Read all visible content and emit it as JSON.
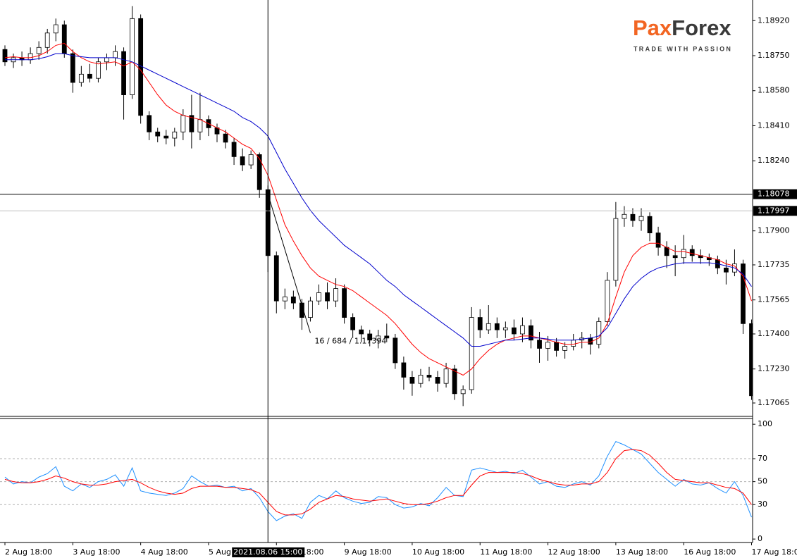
{
  "chart_data": [
    {
      "type": "candlestick",
      "categories": [
        "2 Aug 18:00",
        null,
        null,
        null,
        null,
        null,
        null,
        null,
        "3 Aug 18:00",
        null,
        null,
        null,
        null,
        null,
        null,
        null,
        "4 Aug 18:00",
        null,
        null,
        null,
        null,
        null,
        null,
        null,
        "5 Aug 18:00",
        null,
        null,
        null,
        null,
        null,
        null,
        null,
        "6 Aug 18:00",
        null,
        null,
        null,
        null,
        null,
        null,
        null,
        "9 Aug 18:00",
        null,
        null,
        null,
        null,
        null,
        null,
        null,
        "10 Aug 18:00",
        null,
        null,
        null,
        null,
        null,
        null,
        null,
        "11 Aug 18:00",
        null,
        null,
        null,
        null,
        null,
        null,
        null,
        "12 Aug 18:00",
        null,
        null,
        null,
        null,
        null,
        null,
        null,
        "13 Aug 18:00",
        null,
        null,
        null,
        null,
        null,
        null,
        null,
        "16 Aug 18:00",
        null,
        null,
        null,
        null,
        null,
        null,
        null,
        "17 Aug 18:00"
      ],
      "open": [
        1.1878,
        1.1872,
        1.1874,
        1.1873,
        1.1876,
        1.1879,
        1.1886,
        1.189,
        1.1876,
        1.1862,
        1.1866,
        1.1864,
        1.1872,
        1.1874,
        1.1877,
        1.1856,
        1.1893,
        1.1846,
        1.1838,
        1.1836,
        1.1835,
        1.1838,
        1.1846,
        1.1838,
        1.1844,
        1.184,
        1.1837,
        1.1833,
        1.1826,
        1.1822,
        1.1827,
        1.181,
        1.1778,
        1.1756,
        1.1758,
        1.1755,
        1.1748,
        1.1756,
        1.176,
        1.1756,
        1.1762,
        1.1748,
        1.1742,
        1.174,
        1.1737,
        1.1739,
        1.1738,
        1.1726,
        1.1719,
        1.1716,
        1.172,
        1.1719,
        1.1716,
        1.1723,
        1.1711,
        1.1713,
        1.1748,
        1.1742,
        1.1745,
        1.1742,
        1.1743,
        1.174,
        1.1744,
        1.1737,
        1.1733,
        1.1736,
        1.1732,
        1.1734,
        1.1737,
        1.1738,
        1.1735,
        1.1746,
        1.1766,
        1.1796,
        1.1798,
        1.1795,
        1.1797,
        1.1789,
        1.1782,
        1.1778,
        1.1777,
        1.1781,
        1.1778,
        1.1777,
        1.1776,
        1.1772,
        1.177,
        1.1774,
        1.1745
      ],
      "high": [
        1.188,
        1.1876,
        1.1877,
        1.1879,
        1.1882,
        1.1888,
        1.1893,
        1.1892,
        1.1878,
        1.187,
        1.1871,
        1.1874,
        1.1876,
        1.188,
        1.1879,
        1.1899,
        1.1895,
        1.1848,
        1.184,
        1.1839,
        1.184,
        1.1849,
        1.1856,
        1.1857,
        1.1846,
        1.1842,
        1.1839,
        1.1835,
        1.183,
        1.1829,
        1.1828,
        1.1812,
        1.178,
        1.1762,
        1.1761,
        1.1757,
        1.1758,
        1.1764,
        1.1765,
        1.1767,
        1.1764,
        1.175,
        1.1744,
        1.1742,
        1.1742,
        1.1745,
        1.174,
        1.1729,
        1.1722,
        1.1723,
        1.1724,
        1.1722,
        1.1726,
        1.1725,
        1.1715,
        1.1753,
        1.1752,
        1.1754,
        1.1748,
        1.1746,
        1.1747,
        1.1748,
        1.1747,
        1.1741,
        1.1739,
        1.1738,
        1.1736,
        1.174,
        1.1741,
        1.174,
        1.1748,
        1.177,
        1.1804,
        1.1802,
        1.1801,
        1.1801,
        1.1799,
        1.1792,
        1.1785,
        1.1783,
        1.1788,
        1.1783,
        1.1781,
        1.1779,
        1.1778,
        1.1776,
        1.1781,
        1.1776,
        1.1747
      ],
      "low": [
        1.187,
        1.1869,
        1.187,
        1.1871,
        1.1873,
        1.1876,
        1.1882,
        1.1874,
        1.1857,
        1.186,
        1.1862,
        1.1862,
        1.1868,
        1.187,
        1.1844,
        1.1854,
        1.1842,
        1.1834,
        1.1833,
        1.1832,
        1.1831,
        1.1834,
        1.183,
        1.1834,
        1.1836,
        1.1833,
        1.183,
        1.1822,
        1.1819,
        1.182,
        1.1806,
        1.177,
        1.175,
        1.1752,
        1.1752,
        1.1742,
        1.1746,
        1.1754,
        1.1752,
        1.1753,
        1.1745,
        1.1738,
        1.1736,
        1.1734,
        1.1733,
        1.1736,
        1.1723,
        1.1713,
        1.171,
        1.1714,
        1.1717,
        1.1712,
        1.1714,
        1.1708,
        1.1705,
        1.1711,
        1.1738,
        1.174,
        1.1738,
        1.1738,
        1.1737,
        1.1736,
        1.1733,
        1.1726,
        1.1727,
        1.1729,
        1.1728,
        1.1732,
        1.1733,
        1.173,
        1.1733,
        1.1744,
        1.1763,
        1.1792,
        1.1792,
        1.179,
        1.1785,
        1.1778,
        1.1772,
        1.1768,
        1.1774,
        1.1775,
        1.1774,
        1.1773,
        1.1769,
        1.1764,
        1.1768,
        1.174,
        1.1708
      ],
      "close": [
        1.1872,
        1.1874,
        1.1873,
        1.1876,
        1.1879,
        1.1886,
        1.189,
        1.1876,
        1.1862,
        1.1866,
        1.1864,
        1.1872,
        1.1874,
        1.1877,
        1.1856,
        1.1893,
        1.1846,
        1.1838,
        1.1836,
        1.1835,
        1.1838,
        1.1846,
        1.1838,
        1.1844,
        1.184,
        1.1837,
        1.1833,
        1.1826,
        1.1822,
        1.1827,
        1.181,
        1.1778,
        1.1756,
        1.1758,
        1.1755,
        1.1748,
        1.1756,
        1.176,
        1.1756,
        1.1762,
        1.1748,
        1.1742,
        1.174,
        1.1737,
        1.1739,
        1.1738,
        1.1726,
        1.1719,
        1.1716,
        1.172,
        1.1719,
        1.1716,
        1.1723,
        1.1711,
        1.1713,
        1.1748,
        1.1742,
        1.1745,
        1.1742,
        1.1743,
        1.174,
        1.1744,
        1.1737,
        1.1733,
        1.1736,
        1.1732,
        1.1734,
        1.1737,
        1.1738,
        1.1735,
        1.1746,
        1.1766,
        1.1796,
        1.1798,
        1.1795,
        1.1797,
        1.1789,
        1.1782,
        1.1778,
        1.1777,
        1.1781,
        1.1778,
        1.1777,
        1.1776,
        1.1772,
        1.177,
        1.1774,
        1.1745,
        1.171
      ],
      "bull_color": "#ffffff",
      "bear_color": "#000000",
      "overlays": [
        {
          "color": "#ff0000",
          "values": [
            1.1874,
            1.18745,
            1.1874,
            1.1874,
            1.1875,
            1.1877,
            1.188,
            1.1881,
            1.1877,
            1.1874,
            1.1872,
            1.1871,
            1.18715,
            1.1872,
            1.187,
            1.1872,
            1.1868,
            1.1862,
            1.1856,
            1.1851,
            1.1848,
            1.1846,
            1.1845,
            1.1844,
            1.1842,
            1.184,
            1.1838,
            1.1835,
            1.1832,
            1.183,
            1.1825,
            1.1817,
            1.1805,
            1.1793,
            1.1785,
            1.1778,
            1.1772,
            1.1768,
            1.1766,
            1.1764,
            1.1763,
            1.1761,
            1.1758,
            1.1755,
            1.1752,
            1.1749,
            1.1745,
            1.174,
            1.1735,
            1.1731,
            1.1728,
            1.1726,
            1.1724,
            1.1722,
            1.172,
            1.1723,
            1.1728,
            1.1732,
            1.1735,
            1.1737,
            1.1738,
            1.1739,
            1.1739,
            1.1738,
            1.1737,
            1.1736,
            1.1735,
            1.1735,
            1.1736,
            1.1736,
            1.1738,
            1.1745,
            1.1758,
            1.177,
            1.1778,
            1.1782,
            1.1784,
            1.1784,
            1.1782,
            1.178,
            1.178,
            1.1779,
            1.1778,
            1.1777,
            1.1776,
            1.1774,
            1.1773,
            1.1768,
            1.1756
          ]
        },
        {
          "color": "#0000cc",
          "values": [
            1.1873,
            1.1873,
            1.1873,
            1.1873,
            1.18735,
            1.18745,
            1.1876,
            1.1876,
            1.1875,
            1.18745,
            1.1874,
            1.1874,
            1.1874,
            1.1874,
            1.1873,
            1.1872,
            1.187,
            1.1868,
            1.1866,
            1.1864,
            1.1862,
            1.186,
            1.1858,
            1.1856,
            1.1854,
            1.1852,
            1.185,
            1.1848,
            1.1845,
            1.1843,
            1.184,
            1.1836,
            1.1828,
            1.182,
            1.1813,
            1.1806,
            1.18,
            1.1795,
            1.1791,
            1.1787,
            1.1783,
            1.178,
            1.1777,
            1.1774,
            1.177,
            1.1766,
            1.1763,
            1.1759,
            1.1756,
            1.1753,
            1.175,
            1.1747,
            1.1744,
            1.1741,
            1.1738,
            1.1734,
            1.1734,
            1.1735,
            1.1736,
            1.1737,
            1.1737,
            1.17375,
            1.1738,
            1.1738,
            1.17375,
            1.1737,
            1.1737,
            1.1737,
            1.17375,
            1.1738,
            1.1739,
            1.1743,
            1.175,
            1.1757,
            1.1763,
            1.1767,
            1.177,
            1.1772,
            1.1773,
            1.1774,
            1.17745,
            1.17745,
            1.17745,
            1.17745,
            1.1774,
            1.1773,
            1.1772,
            1.1769,
            1.1763
          ]
        }
      ],
      "ylim": [
        1.17,
        1.1902
      ],
      "yticks": [
        {
          "value": 1.1892,
          "label": "1.18920"
        },
        {
          "value": 1.1875,
          "label": "1.18750"
        },
        {
          "value": 1.1858,
          "label": "1.18580"
        },
        {
          "value": 1.1841,
          "label": "1.18410"
        },
        {
          "value": 1.1824,
          "label": "1.18240"
        },
        {
          "value": 1.179,
          "label": "1.17900"
        },
        1.17735,
        1.17565,
        {
          "value": 1.174,
          "label": "1.17400"
        },
        {
          "value": 1.1723,
          "label": "1.17230"
        },
        1.17065
      ],
      "crosshair": {
        "x": 31,
        "price": 1.18078,
        "label": "2021.08.06 15:00"
      },
      "bid": 1.17997,
      "trendline": {
        "start": {
          "x": 31,
          "price": 1.18078
        },
        "end": {
          "x": 36,
          "price": 1.17405
        },
        "label": "16 / 684 / 1.17394"
      }
    },
    {
      "type": "line",
      "series": [
        {
          "color": "#1e90ff",
          "values": [
            54,
            48,
            50,
            49,
            54,
            57,
            63,
            46,
            42,
            48,
            45,
            50,
            52,
            56,
            46,
            62,
            42,
            40,
            39,
            38,
            40,
            44,
            55,
            50,
            46,
            47,
            45,
            46,
            42,
            44,
            36,
            24,
            16,
            20,
            22,
            18,
            32,
            38,
            35,
            42,
            36,
            33,
            31,
            32,
            37,
            36,
            30,
            27,
            28,
            31,
            29,
            36,
            45,
            38,
            37,
            60,
            62,
            60,
            58,
            59,
            57,
            60,
            54,
            48,
            50,
            46,
            45,
            48,
            50,
            47,
            55,
            72,
            85,
            82,
            78,
            74,
            66,
            58,
            52,
            46,
            52,
            48,
            47,
            49,
            44,
            40,
            50,
            38,
            19
          ]
        },
        {
          "color": "#ff0000",
          "values": [
            52,
            50,
            49,
            49,
            50,
            52,
            55,
            53,
            50,
            48,
            47,
            47,
            48,
            50,
            51,
            52,
            49,
            45,
            42,
            40,
            39,
            40,
            44,
            46,
            46,
            46,
            45,
            45,
            44,
            43,
            40,
            32,
            24,
            21,
            21,
            22,
            26,
            32,
            35,
            38,
            37,
            35,
            34,
            33,
            34,
            35,
            33,
            31,
            30,
            30,
            31,
            33,
            36,
            38,
            38,
            47,
            55,
            58,
            58,
            58,
            58,
            57,
            55,
            52,
            50,
            48,
            47,
            47,
            48,
            48,
            50,
            58,
            70,
            77,
            78,
            77,
            73,
            66,
            58,
            52,
            51,
            50,
            49,
            49,
            47,
            45,
            44,
            40,
            30
          ]
        }
      ],
      "ylim": [
        -3,
        105
      ],
      "yticks": [
        100,
        70,
        50,
        30,
        0
      ],
      "levels": [
        30,
        50,
        70
      ]
    }
  ],
  "logo": {
    "parts": [
      "Pax",
      "Forex"
    ],
    "tagline": "TRADE WITH PASSION"
  }
}
